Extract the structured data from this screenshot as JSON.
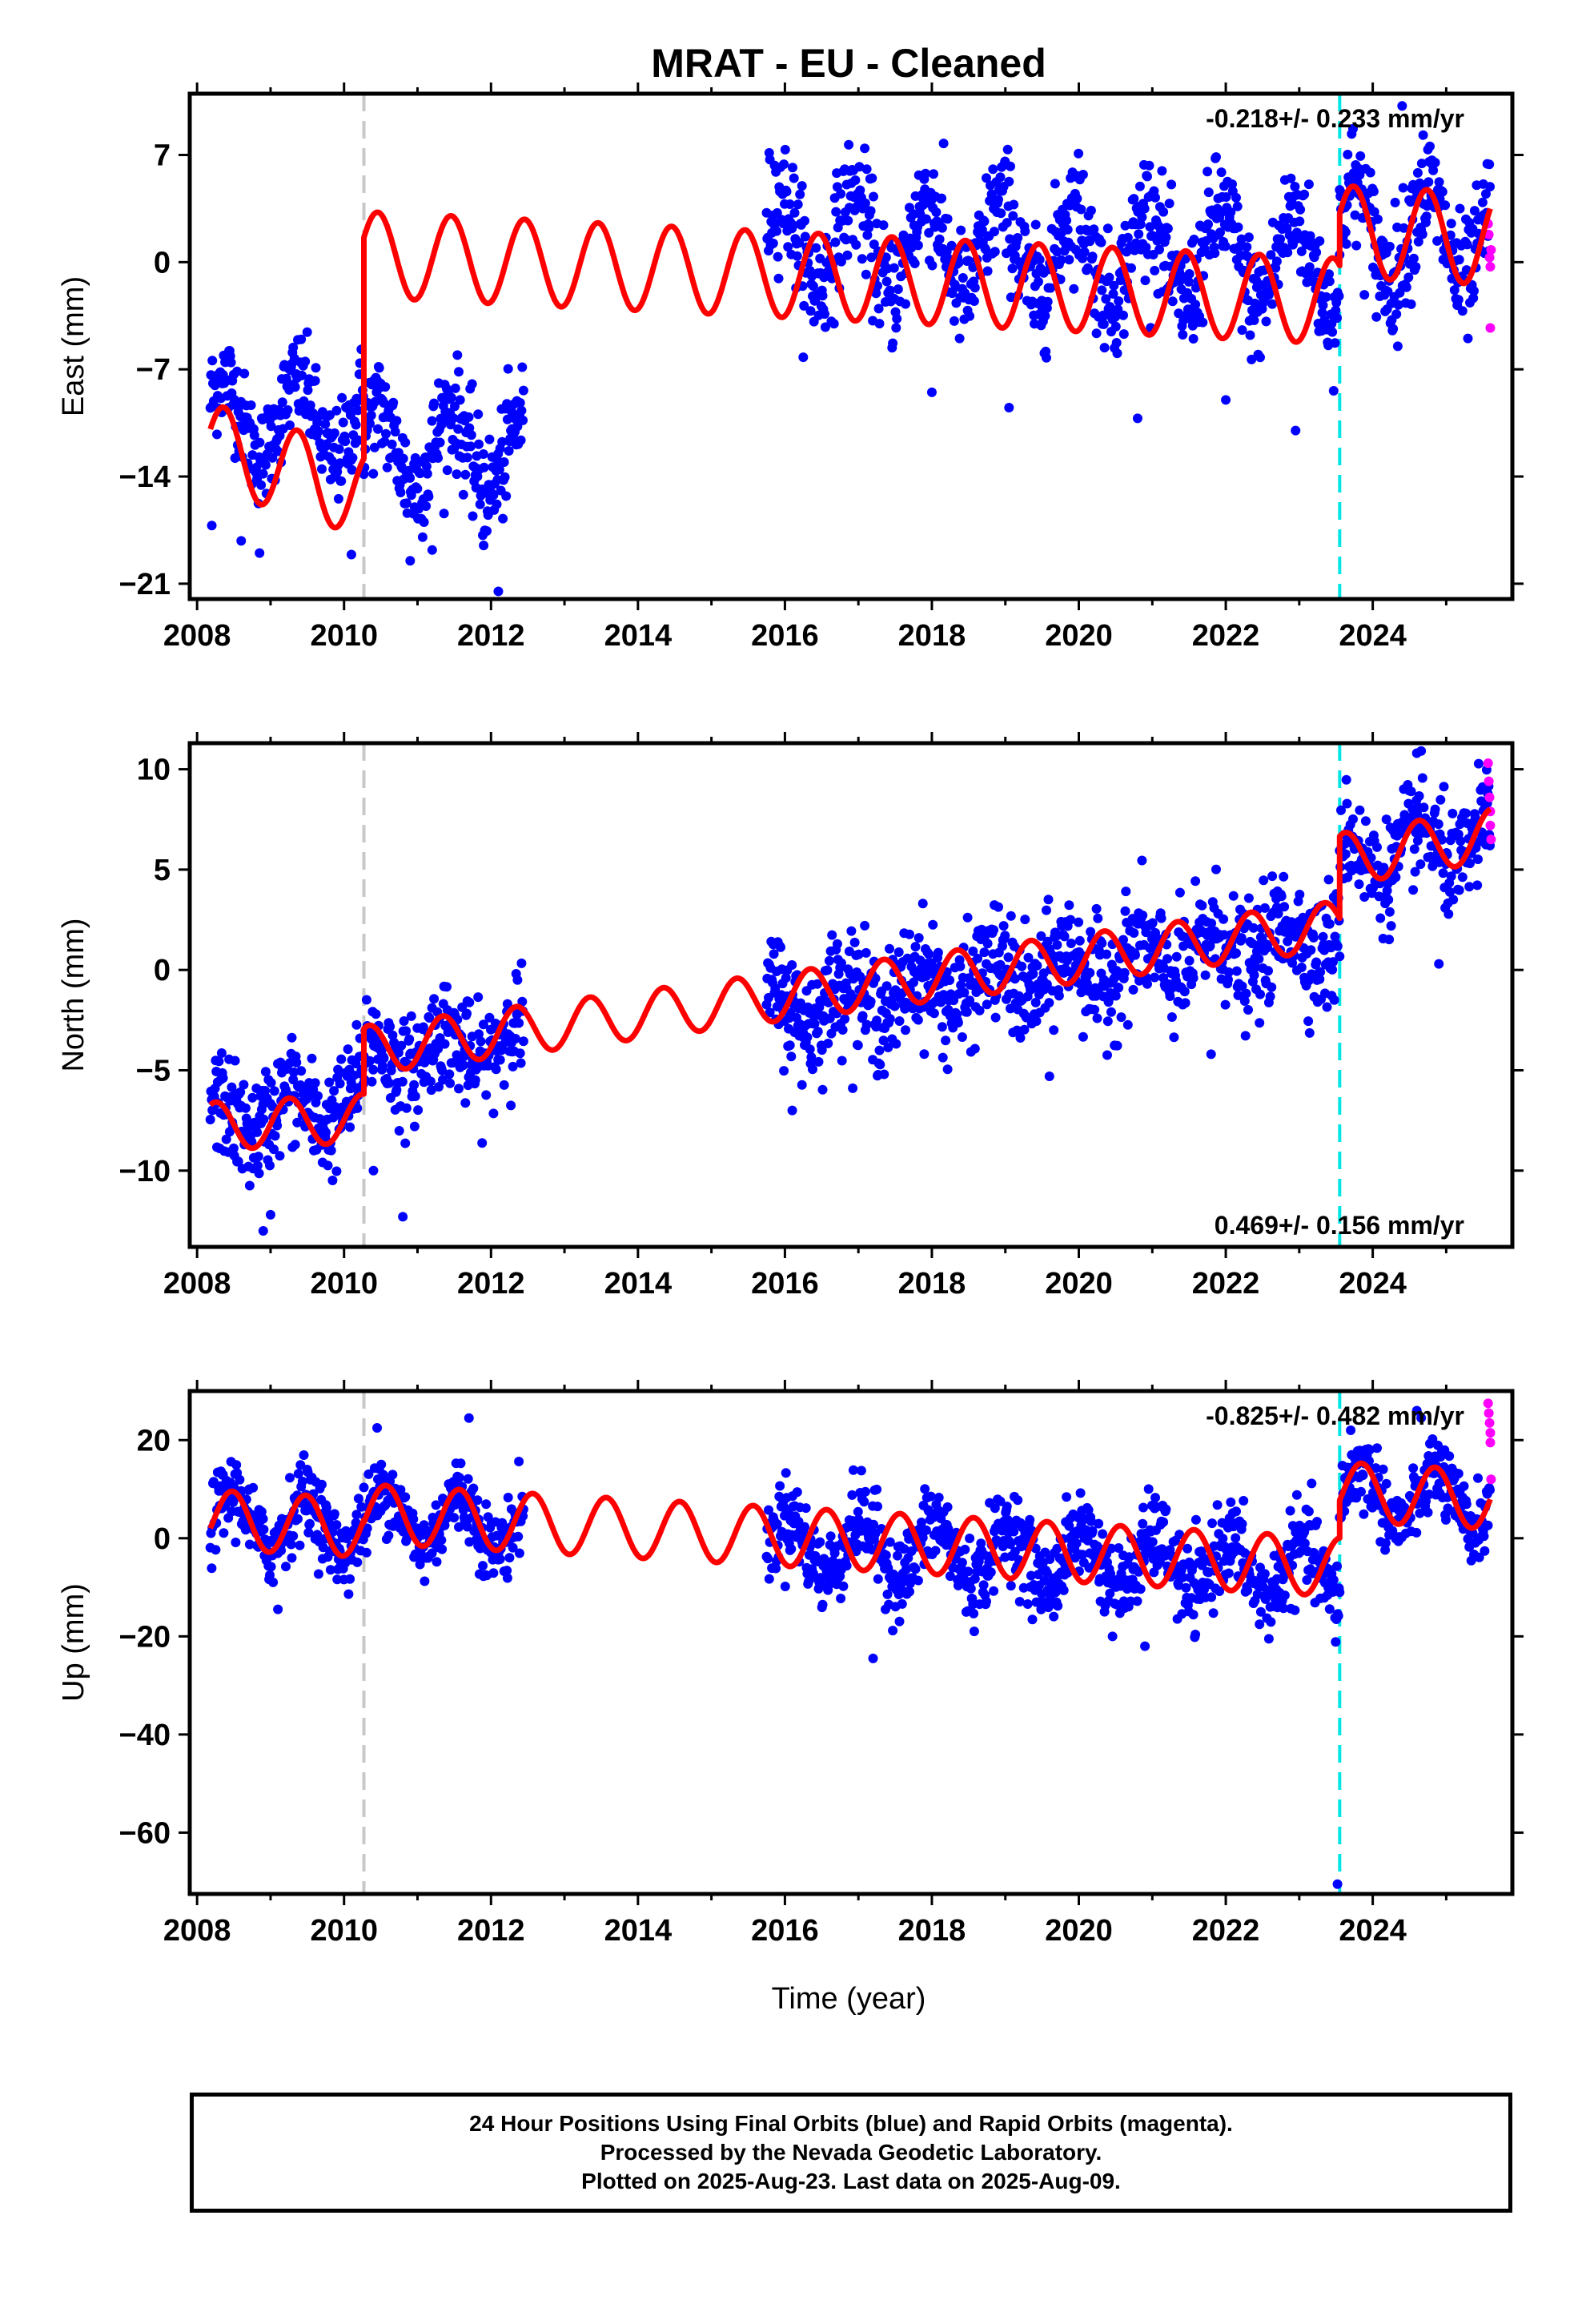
{
  "chart_data": {
    "title": "MRAT  - EU - Cleaned",
    "type": "scatter",
    "xlabel": "Time (year)",
    "xlim": [
      2007.9,
      2025.9
    ],
    "xticks": [
      2008,
      2010,
      2012,
      2014,
      2016,
      2018,
      2020,
      2022,
      2024
    ],
    "xtick_labels": [
      "2008",
      "2010",
      "2012",
      "2014",
      "2016",
      "2018",
      "2020",
      "2022",
      "2024"
    ],
    "events": [
      {
        "x": 2010.27,
        "color": "#c8c8c8",
        "style": "dashed"
      },
      {
        "x": 2023.55,
        "color": "#00e5e5",
        "style": "dashed"
      }
    ],
    "series_legend": {
      "final_orbits": "#0000ff",
      "rapid_orbits": "#ff00ff",
      "model": "#ff0000"
    },
    "panels": [
      {
        "id": "east",
        "ylabel": "East (mm)",
        "ylim": [
          -22,
          11
        ],
        "yticks": [
          7,
          0,
          -7,
          -14,
          -21
        ],
        "ytick_labels": [
          "7",
          "0",
          "−7",
          "−14",
          "−21"
        ],
        "rate_label": "-0.218+/- 0.233 mm/yr",
        "rate_position": "top-right",
        "segments": [
          {
            "start": 2008.18,
            "end": 2010.27,
            "offset": -10.0,
            "trend": -0.2,
            "amp": 2.5,
            "noise": 1.6
          },
          {
            "start": 2010.27,
            "end": 2012.45,
            "offset": -12.0,
            "trend": -0.2,
            "amp": 2.5,
            "noise": 1.8
          },
          {
            "start": 2015.75,
            "end": 2023.55,
            "offset": 1.5,
            "trend": -0.2,
            "amp": 3.0,
            "noise": 1.9
          },
          {
            "start": 2023.55,
            "end": 2025.6,
            "offset": 2.0,
            "trend": -0.2,
            "amp": 3.0,
            "noise": 2.0
          }
        ],
        "model_segments": [
          {
            "start": 2008.18,
            "end": 2010.27,
            "offset": -12.0,
            "trend": -1.5,
            "amp": 2.8,
            "phase": 0.4
          },
          {
            "start": 2010.27,
            "end": 2023.55,
            "offset": 0.5,
            "trend": -0.23,
            "amp": 2.8,
            "phase": 0.4
          },
          {
            "start": 2023.55,
            "end": 2025.6,
            "offset": 2.0,
            "trend": -0.23,
            "amp": 3.0,
            "phase": 0.4
          }
        ],
        "rapid_points": [
          [
            2025.57,
            2.5
          ],
          [
            2025.58,
            1.8
          ],
          [
            2025.59,
            0.3
          ],
          [
            2025.6,
            -0.3
          ],
          [
            2025.61,
            0.8
          ],
          [
            2025.6,
            -4.3
          ]
        ],
        "outliers": [
          [
            2008.2,
            -17.2
          ],
          [
            2008.6,
            -18.2
          ],
          [
            2008.85,
            -19.0
          ],
          [
            2010.1,
            -19.1
          ],
          [
            2010.9,
            -19.5
          ],
          [
            2011.2,
            -18.8
          ],
          [
            2011.9,
            -18.5
          ],
          [
            2012.1,
            -21.5
          ],
          [
            2019.05,
            -9.5
          ],
          [
            2020.8,
            -10.2
          ],
          [
            2022.0,
            -9.0
          ],
          [
            2022.95,
            -11.0
          ],
          [
            2024.4,
            10.2
          ],
          [
            2018.0,
            -8.5
          ]
        ]
      },
      {
        "id": "north",
        "ylabel": "North (mm)",
        "ylim": [
          -13.8,
          11.3
        ],
        "yticks": [
          10,
          5,
          0,
          -5,
          -10
        ],
        "ytick_labels": [
          "10",
          "5",
          "0",
          "−5",
          "−10"
        ],
        "rate_label": "0.469+/- 0.156 mm/yr",
        "rate_position": "bottom-right",
        "segments": [
          {
            "start": 2008.18,
            "end": 2010.27,
            "offset": -7.5,
            "trend": 0.47,
            "amp": 1.0,
            "noise": 1.3
          },
          {
            "start": 2010.27,
            "end": 2012.45,
            "offset": -4.5,
            "trend": 0.47,
            "amp": 1.0,
            "noise": 1.3
          },
          {
            "start": 2015.75,
            "end": 2023.55,
            "offset": -2.0,
            "trend": 0.47,
            "amp": 1.0,
            "noise": 1.4
          },
          {
            "start": 2023.55,
            "end": 2025.6,
            "offset": 5.5,
            "trend": 0.47,
            "amp": 1.2,
            "noise": 1.3
          }
        ],
        "model_segments": [
          {
            "start": 2008.18,
            "end": 2010.27,
            "offset": -7.8,
            "trend": 0.2,
            "amp": 1.2,
            "phase": 1.1
          },
          {
            "start": 2010.27,
            "end": 2023.55,
            "offset": -4.0,
            "trend": 0.47,
            "amp": 1.2,
            "phase": 1.1
          },
          {
            "start": 2023.55,
            "end": 2025.6,
            "offset": 5.5,
            "trend": 0.6,
            "amp": 1.3,
            "phase": 1.1
          }
        ],
        "rapid_points": [
          [
            2025.57,
            10.3
          ],
          [
            2025.58,
            9.4
          ],
          [
            2025.59,
            8.6
          ],
          [
            2025.6,
            7.9
          ],
          [
            2025.6,
            7.2
          ],
          [
            2025.61,
            6.5
          ]
        ],
        "outliers": [
          [
            2008.9,
            -13.0
          ],
          [
            2009.0,
            -12.2
          ],
          [
            2010.8,
            -12.3
          ],
          [
            2010.4,
            -10.0
          ],
          [
            2016.1,
            -7.0
          ],
          [
            2019.6,
            -5.3
          ],
          [
            2021.8,
            -4.2
          ],
          [
            2024.6,
            10.8
          ],
          [
            2024.9,
            0.3
          ],
          [
            2023.4,
            4.5
          ]
        ]
      },
      {
        "id": "up",
        "ylabel": "Up (mm)",
        "ylim": [
          -72.5,
          30
        ],
        "yticks": [
          20,
          0,
          -20,
          -40,
          -60
        ],
        "ytick_labels": [
          "20",
          "0",
          "−20",
          "−40",
          "−60"
        ],
        "rate_label": "-0.825+/- 0.482 mm/yr",
        "rate_position": "top-right",
        "segments": [
          {
            "start": 2008.18,
            "end": 2010.27,
            "offset": 4.0,
            "trend": -0.8,
            "amp": 5.5,
            "noise": 3.8
          },
          {
            "start": 2010.27,
            "end": 2012.45,
            "offset": 4.5,
            "trend": -0.8,
            "amp": 5.5,
            "noise": 3.8
          },
          {
            "start": 2015.75,
            "end": 2023.55,
            "offset": -1.0,
            "trend": -0.8,
            "amp": 5.8,
            "noise": 4.2
          },
          {
            "start": 2023.55,
            "end": 2025.6,
            "offset": 9.0,
            "trend": -0.8,
            "amp": 5.5,
            "noise": 4.0
          }
        ],
        "model_segments": [
          {
            "start": 2008.18,
            "end": 2010.27,
            "offset": 3.8,
            "trend": -0.8,
            "amp": 6.0,
            "phase": -0.3
          },
          {
            "start": 2010.27,
            "end": 2023.55,
            "offset": 5.0,
            "trend": -0.82,
            "amp": 6.0,
            "phase": -0.3
          },
          {
            "start": 2023.55,
            "end": 2025.6,
            "offset": 9.5,
            "trend": -0.8,
            "amp": 6.0,
            "phase": -0.3
          }
        ],
        "rapid_points": [
          [
            2025.57,
            27.5
          ],
          [
            2025.58,
            25.5
          ],
          [
            2025.59,
            23.5
          ],
          [
            2025.6,
            21.5
          ],
          [
            2025.6,
            19.5
          ],
          [
            2025.61,
            12.0
          ]
        ],
        "outliers": [
          [
            2023.52,
            -70.5
          ],
          [
            2009.1,
            -14.5
          ],
          [
            2017.2,
            -24.5
          ],
          [
            2020.9,
            -22.0
          ],
          [
            2010.45,
            22.5
          ],
          [
            2011.7,
            24.5
          ],
          [
            2024.6,
            26.0
          ],
          [
            2023.7,
            22.0
          ]
        ]
      }
    ]
  },
  "footer": {
    "line1": "24 Hour Positions Using Final Orbits (blue) and Rapid Orbits (magenta).",
    "line2": "Processed by the Nevada Geodetic Laboratory.",
    "line3": "Plotted on 2025-Aug-23. Last data on 2025-Aug-09."
  }
}
